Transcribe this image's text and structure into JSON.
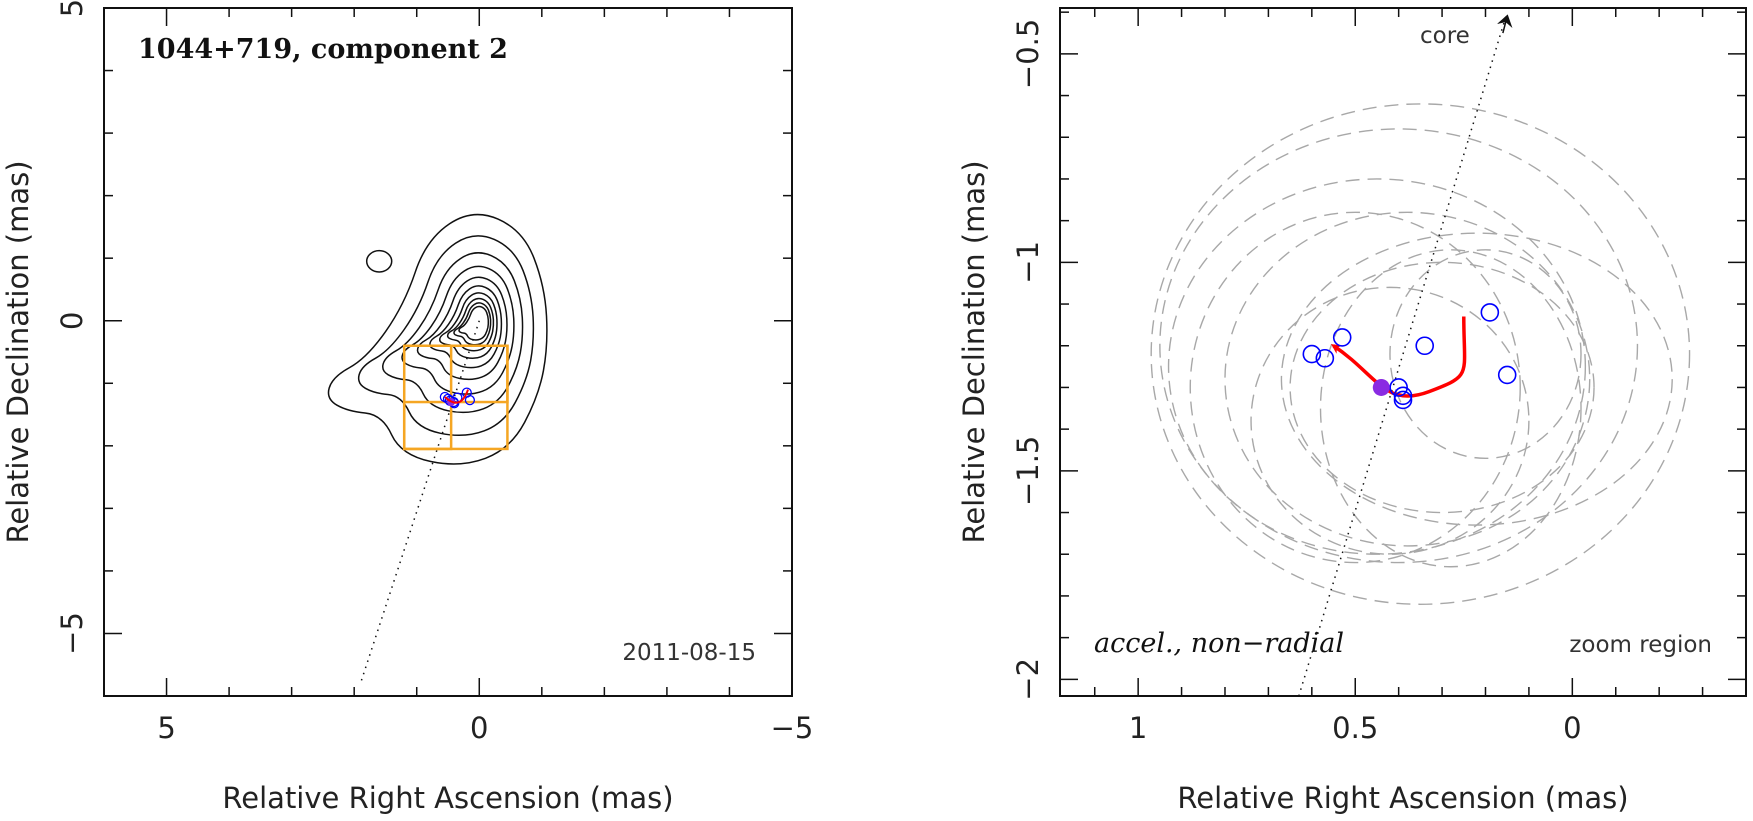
{
  "chart_data": [
    {
      "type": "contour",
      "title": "1044+719, component 2",
      "date_label": "2011-08-15",
      "xlabel": "Relative Right Ascension (mas)",
      "ylabel": "Relative Declination (mas)",
      "xlim": [
        6,
        -5
      ],
      "ylim": [
        -6,
        5
      ],
      "x_ticks": [
        {
          "v": 5,
          "label": "5"
        },
        {
          "v": 0,
          "label": "0"
        },
        {
          "v": -5,
          "label": "−5"
        }
      ],
      "y_ticks": [
        {
          "v": 5,
          "label": "5"
        },
        {
          "v": 0,
          "label": "0"
        },
        {
          "v": -5,
          "label": "−5"
        }
      ],
      "core": [
        0,
        0
      ],
      "jet_line": [
        [
          0,
          0
        ],
        [
          1.9,
          -5.8
        ]
      ],
      "secondary_blob": {
        "x": 1.6,
        "y": 0.95,
        "rx": 0.2,
        "ry": 0.17
      },
      "contour_levels": 10,
      "boxes": [
        {
          "x0": 1.2,
          "x1": -0.45,
          "y0": -0.4,
          "y1": -2.05
        },
        {
          "x0": 0.45,
          "x1": -0.45,
          "y0": -0.4,
          "y1": -1.3
        },
        {
          "x0": 1.2,
          "x1": 0.45,
          "y0": -1.3,
          "y1": -2.05
        }
      ],
      "box_color": "#f5a623",
      "points": [
        [
          0.55,
          -1.22
        ],
        [
          0.5,
          -1.25
        ],
        [
          0.47,
          -1.28
        ],
        [
          0.41,
          -1.3
        ],
        [
          0.4,
          -1.32
        ],
        [
          0.35,
          -1.23
        ],
        [
          0.2,
          -1.15
        ],
        [
          0.15,
          -1.27
        ]
      ],
      "point_color": "#0000ff",
      "filled_point": [
        0.45,
        -1.3
      ],
      "filled_color": "#8a2be2",
      "track_color": "#ff0000"
    },
    {
      "type": "scatter",
      "note_left": "accel., non−radial",
      "note_right": "zoom region",
      "core_label": "core",
      "xlabel": "Relative Right Ascension (mas)",
      "ylabel": "Relative Declination (mas)",
      "xlim": [
        1.18,
        -0.4
      ],
      "ylim": [
        -2.04,
        -0.39
      ],
      "x_ticks": [
        {
          "v": 1,
          "label": "1"
        },
        {
          "v": 0.5,
          "label": "0.5"
        },
        {
          "v": 0,
          "label": "0"
        }
      ],
      "y_ticks": [
        {
          "v": -0.5,
          "label": "−0.5"
        },
        {
          "v": -1,
          "label": "−1"
        },
        {
          "v": -1.5,
          "label": "−1.5"
        },
        {
          "v": -2,
          "label": "−2"
        }
      ],
      "minor_x_step": 0.1,
      "minor_y_step": 0.1,
      "jet_line": [
        [
          0.63,
          -2.04
        ],
        [
          0.15,
          -0.4
        ]
      ],
      "core_arrow_tip": [
        0.15,
        -0.41
      ],
      "points": [
        [
          0.6,
          -1.22
        ],
        [
          0.57,
          -1.23
        ],
        [
          0.53,
          -1.18
        ],
        [
          0.4,
          -1.3
        ],
        [
          0.39,
          -1.32
        ],
        [
          0.39,
          -1.33
        ],
        [
          0.34,
          -1.2
        ],
        [
          0.19,
          -1.12
        ],
        [
          0.15,
          -1.27
        ]
      ],
      "point_color": "#0000ff",
      "filled_point": [
        0.44,
        -1.3
      ],
      "filled_color": "#8a2be2",
      "track": [
        [
          0.25,
          -1.13
        ],
        [
          0.24,
          -1.27
        ],
        [
          0.33,
          -1.31
        ],
        [
          0.45,
          -1.27
        ],
        [
          0.55,
          -1.2
        ]
      ],
      "track_color": "#ff0000",
      "dashed_ellipses": [
        {
          "x": 0.35,
          "y": -1.22,
          "rx": 0.62,
          "ry": 0.6
        },
        {
          "x": 0.4,
          "y": -1.2,
          "rx": 0.55,
          "ry": 0.52
        },
        {
          "x": 0.45,
          "y": -1.25,
          "rx": 0.48,
          "ry": 0.45
        },
        {
          "x": 0.38,
          "y": -1.28,
          "rx": 0.42,
          "ry": 0.4
        },
        {
          "x": 0.3,
          "y": -1.3,
          "rx": 0.35,
          "ry": 0.3
        },
        {
          "x": 0.5,
          "y": -1.3,
          "rx": 0.38,
          "ry": 0.42
        },
        {
          "x": 0.22,
          "y": -1.28,
          "rx": 0.45,
          "ry": 0.35
        },
        {
          "x": 0.28,
          "y": -1.35,
          "rx": 0.3,
          "ry": 0.38
        },
        {
          "x": 0.42,
          "y": -1.38,
          "rx": 0.32,
          "ry": 0.32
        },
        {
          "x": 0.2,
          "y": -1.22,
          "rx": 0.22,
          "ry": 0.25
        }
      ],
      "ellipse_color": "#a8a8a8"
    }
  ]
}
